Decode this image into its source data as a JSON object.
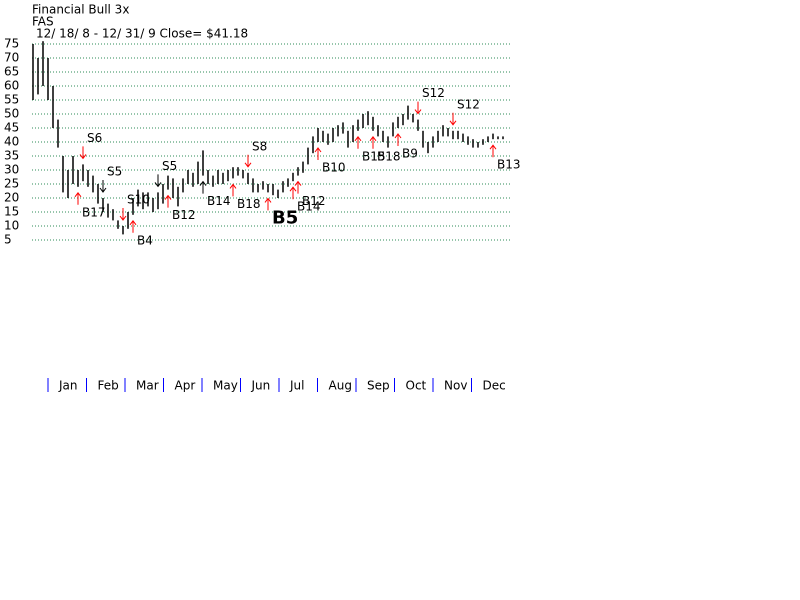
{
  "chart_data": {
    "type": "hilo",
    "title": "Financial Bull 3x",
    "subtitle": "FAS",
    "period": "12/ 18/ 8 -  12/ 31/ 9   Close= $41.18",
    "color": "#000000",
    "grid_color": "#2e8b57",
    "grid": true,
    "ylim": [
      5,
      75
    ],
    "yticks": [
      75,
      70,
      65,
      60,
      55,
      50,
      45,
      40,
      35,
      30,
      25,
      20,
      15,
      10,
      5
    ],
    "months": [
      "Jan",
      "Feb",
      "Mar",
      "Apr",
      "May",
      "Jun",
      "Jul",
      "Aug",
      "Sep",
      "Oct",
      "Nov",
      "Dec"
    ],
    "month_tick_color": "#0000ff",
    "high": [
      75,
      70,
      76,
      70,
      60,
      48,
      35,
      30,
      35,
      30,
      32,
      30,
      28,
      25,
      20,
      18,
      16,
      12,
      10,
      15,
      20,
      23,
      22,
      22,
      20,
      22,
      25,
      28,
      27,
      24,
      27,
      30,
      29,
      33,
      37,
      30,
      28,
      30,
      29,
      30,
      31,
      31,
      30,
      29,
      27,
      25,
      26,
      25,
      25,
      23,
      26,
      27,
      29,
      31,
      33,
      38,
      42,
      45,
      44,
      43,
      45,
      46,
      47,
      44,
      46,
      48,
      50,
      51,
      49,
      46,
      44,
      42,
      47,
      49,
      50,
      53,
      50,
      48,
      44,
      40,
      42,
      44,
      46,
      45,
      44,
      44,
      43,
      42,
      41,
      40,
      41,
      42,
      43,
      42,
      42
    ],
    "low": [
      55,
      57,
      60,
      55,
      45,
      38,
      22,
      20,
      25,
      24,
      26,
      24,
      22,
      18,
      15,
      13,
      12,
      9,
      7,
      9,
      14,
      17,
      16,
      17,
      15,
      16,
      18,
      23,
      20,
      17,
      22,
      25,
      24,
      25,
      28,
      25,
      24,
      25,
      25,
      26,
      27,
      28,
      27,
      25,
      22,
      22,
      23,
      22,
      21,
      20,
      22,
      24,
      26,
      28,
      29,
      32,
      36,
      40,
      40,
      39,
      40,
      42,
      43,
      38,
      40,
      44,
      45,
      46,
      44,
      42,
      40,
      38,
      42,
      45,
      46,
      48,
      47,
      44,
      38,
      36,
      38,
      40,
      42,
      42,
      41,
      41,
      40,
      39,
      38,
      38,
      39,
      40,
      41,
      41,
      41
    ],
    "signals": [
      {
        "label": "S6",
        "at": 10,
        "direction": "down",
        "color": "#ff0000"
      },
      {
        "label": "S5",
        "at": 14,
        "direction": "down",
        "color": "#000000"
      },
      {
        "label": "S10",
        "at": 18,
        "direction": "down",
        "color": "#ff0000"
      },
      {
        "label": "S5",
        "at": 25,
        "direction": "down",
        "color": "#000000"
      },
      {
        "label": "S8",
        "at": 43,
        "direction": "down",
        "color": "#ff0000"
      },
      {
        "label": "S12",
        "at": 77,
        "direction": "down",
        "color": "#ff0000"
      },
      {
        "label": "S12",
        "at": 84,
        "direction": "down",
        "color": "#ff0000"
      },
      {
        "label": "B17",
        "at": 9,
        "direction": "up",
        "color": "#ff0000"
      },
      {
        "label": "B4",
        "at": 20,
        "direction": "up",
        "color": "#ff0000"
      },
      {
        "label": "B12",
        "at": 27,
        "direction": "up",
        "color": "#ff0000"
      },
      {
        "label": "B14",
        "at": 34,
        "direction": "up",
        "color": "#000000"
      },
      {
        "label": "B18",
        "at": 40,
        "direction": "up",
        "color": "#ff0000"
      },
      {
        "label": "B5",
        "at": 47,
        "direction": "up",
        "color": "#ff0000"
      },
      {
        "label": "B14",
        "at": 52,
        "direction": "up",
        "color": "#ff0000"
      },
      {
        "label": "B12",
        "at": 53,
        "direction": "up",
        "color": "#ff0000"
      },
      {
        "label": "B10",
        "at": 57,
        "direction": "up",
        "color": "#ff0000"
      },
      {
        "label": "B15",
        "at": 65,
        "direction": "up",
        "color": "#ff0000"
      },
      {
        "label": "B18",
        "at": 68,
        "direction": "up",
        "color": "#ff0000"
      },
      {
        "label": "B9",
        "at": 73,
        "direction": "up",
        "color": "#ff0000"
      },
      {
        "label": "B13",
        "at": 92,
        "direction": "up",
        "color": "#ff0000"
      }
    ]
  }
}
